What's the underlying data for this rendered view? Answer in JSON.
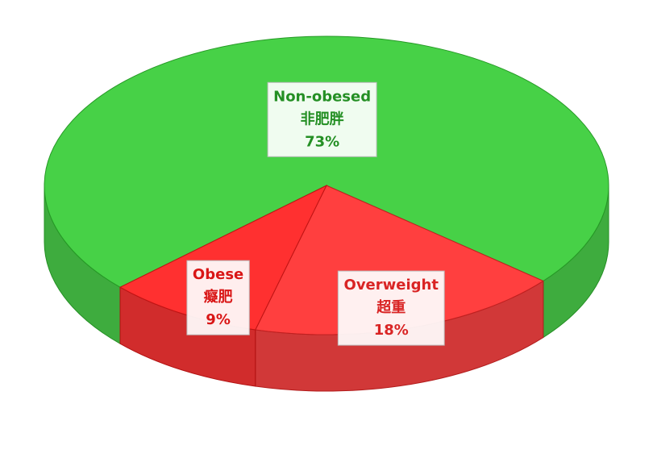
{
  "chart_data": {
    "type": "pie",
    "categories": [
      "Non-obesed",
      "Overweight",
      "Obese"
    ],
    "categories_zh": [
      "非肥胖",
      "超重",
      "癡肥"
    ],
    "values": [
      73,
      18,
      9
    ],
    "value_labels": [
      "73%",
      "18%",
      "9%"
    ],
    "colors": [
      "#33cc33",
      "#ff2a2a",
      "#ff1a1a"
    ]
  }
}
